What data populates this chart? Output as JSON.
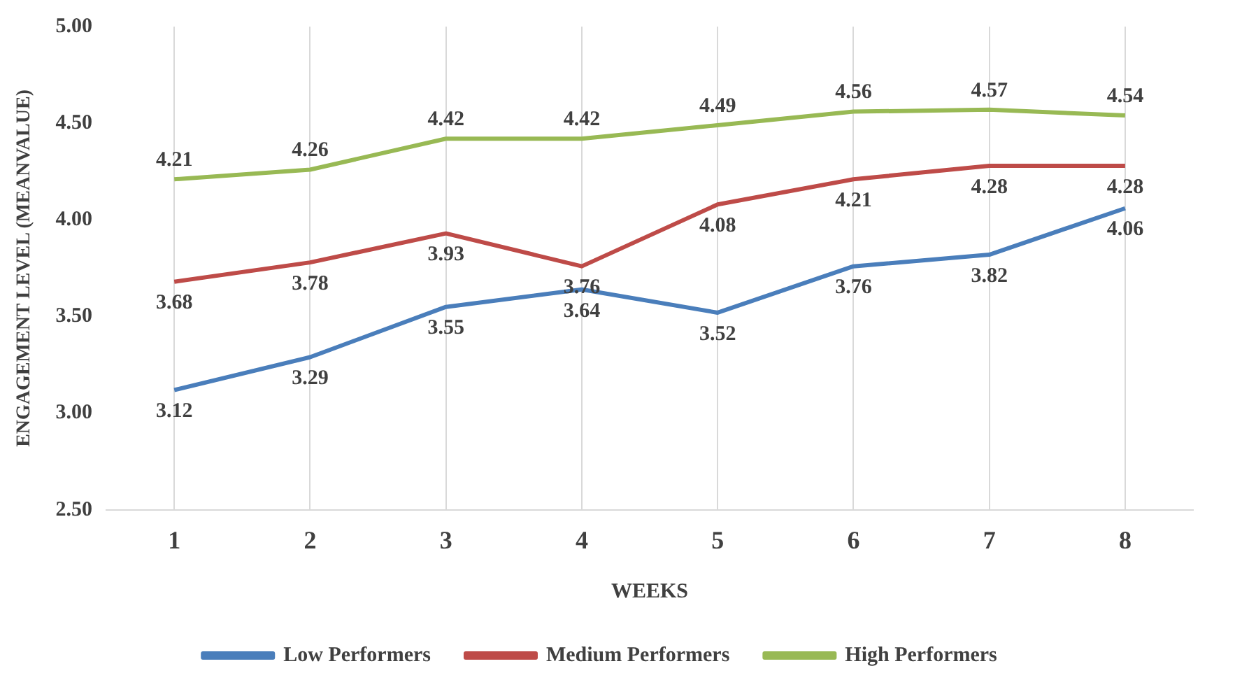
{
  "chart_data": {
    "type": "line",
    "xlabel": "WEEKS",
    "ylabel": "ENGAGEMENT LEVEL (MEANVALUE)",
    "categories": [
      "1",
      "2",
      "3",
      "4",
      "5",
      "6",
      "7",
      "8"
    ],
    "series": [
      {
        "name": "Low Performers",
        "color": "#4a7ebb",
        "values": [
          3.12,
          3.29,
          3.55,
          3.64,
          3.52,
          3.76,
          3.82,
          4.06
        ]
      },
      {
        "name": "Medium Performers",
        "color": "#be4b48",
        "values": [
          3.68,
          3.78,
          3.93,
          3.76,
          4.08,
          4.21,
          4.28,
          4.28
        ]
      },
      {
        "name": "High Performers",
        "color": "#98b954",
        "values": [
          4.21,
          4.26,
          4.42,
          4.42,
          4.49,
          4.56,
          4.57,
          4.54
        ]
      }
    ],
    "ylim": [
      2.5,
      5.0
    ],
    "yticks": [
      {
        "value": 2.5,
        "label": "2.50"
      },
      {
        "value": 3.0,
        "label": "3.00"
      },
      {
        "value": 3.5,
        "label": "3.50"
      },
      {
        "value": 4.0,
        "label": "4.00"
      },
      {
        "value": 4.5,
        "label": "4.50"
      },
      {
        "value": 5.0,
        "label": "5.00"
      }
    ],
    "grid": "x",
    "legend": "bottom",
    "marker": "none",
    "line_style": "solid",
    "data_labels": true
  }
}
